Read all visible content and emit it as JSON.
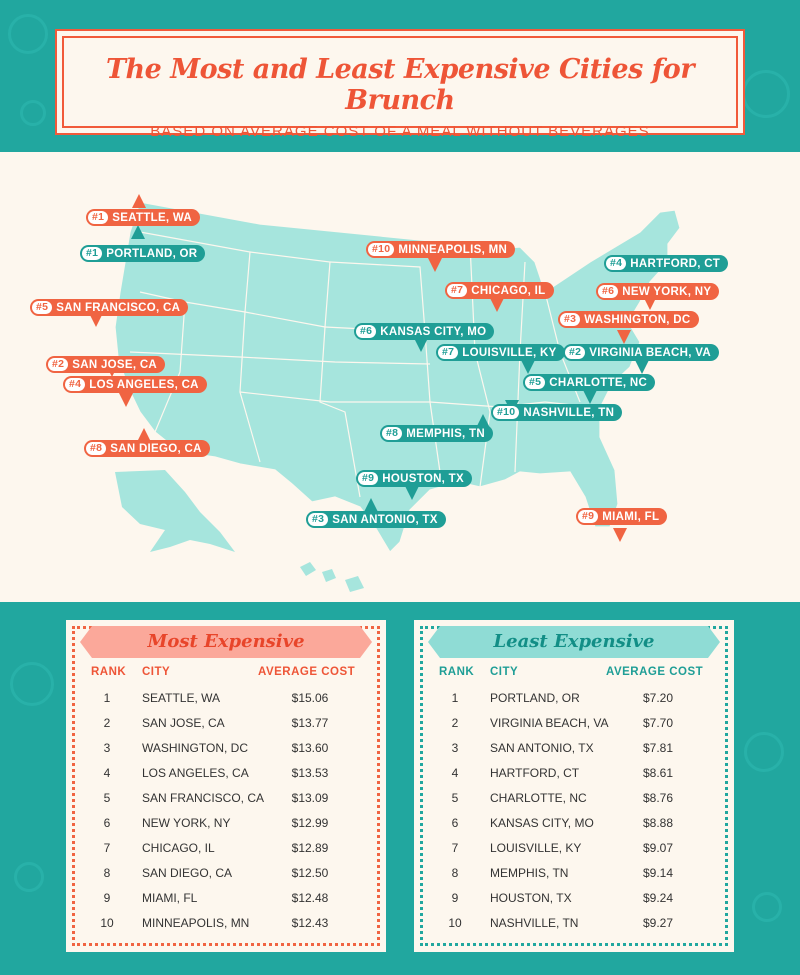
{
  "title": "The Most and Least Expensive Cities for Brunch",
  "subtitle": "BASED ON AVERAGE COST OF A MEAL WITHOUT BEVERAGES",
  "colors": {
    "most": "#f06442",
    "least": "#1f9e96",
    "map": "#a6e5dd",
    "background": "#fdf7ee"
  },
  "map_pins": [
    {
      "rank": "#1",
      "city": "SEATTLE, WA",
      "color": "red"
    },
    {
      "rank": "#1",
      "city": "PORTLAND, OR",
      "color": "teal"
    },
    {
      "rank": "#5",
      "city": "SAN FRANCISCO, CA",
      "color": "red"
    },
    {
      "rank": "#2",
      "city": "SAN JOSE, CA",
      "color": "red"
    },
    {
      "rank": "#4",
      "city": "LOS ANGELES, CA",
      "color": "red"
    },
    {
      "rank": "#8",
      "city": "SAN DIEGO, CA",
      "color": "red"
    },
    {
      "rank": "#10",
      "city": "MINNEAPOLIS, MN",
      "color": "red"
    },
    {
      "rank": "#7",
      "city": "CHICAGO, IL",
      "color": "red"
    },
    {
      "rank": "#6",
      "city": "KANSAS CITY, MO",
      "color": "teal"
    },
    {
      "rank": "#7",
      "city": "LOUISVILLE, KY",
      "color": "teal"
    },
    {
      "rank": "#8",
      "city": "MEMPHIS, TN",
      "color": "teal"
    },
    {
      "rank": "#9",
      "city": "HOUSTON, TX",
      "color": "teal"
    },
    {
      "rank": "#3",
      "city": "SAN ANTONIO, TX",
      "color": "teal"
    },
    {
      "rank": "#4",
      "city": "HARTFORD, CT",
      "color": "teal"
    },
    {
      "rank": "#6",
      "city": "NEW YORK, NY",
      "color": "red"
    },
    {
      "rank": "#3",
      "city": "WASHINGTON, DC",
      "color": "red"
    },
    {
      "rank": "#2",
      "city": "VIRGINIA BEACH, VA",
      "color": "teal"
    },
    {
      "rank": "#5",
      "city": "CHARLOTTE, NC",
      "color": "teal"
    },
    {
      "rank": "#10",
      "city": "NASHVILLE, TN",
      "color": "teal"
    },
    {
      "rank": "#9",
      "city": "MIAMI, FL",
      "color": "red"
    }
  ],
  "most": {
    "heading": "Most Expensive",
    "col_rank": "RANK",
    "col_city": "CITY",
    "col_cost": "AVERAGE COST",
    "rows": [
      {
        "rank": "1",
        "city": "SEATTLE, WA",
        "cost": "$15.06"
      },
      {
        "rank": "2",
        "city": "SAN JOSE, CA",
        "cost": "$13.77"
      },
      {
        "rank": "3",
        "city": "WASHINGTON, DC",
        "cost": "$13.60"
      },
      {
        "rank": "4",
        "city": "LOS ANGELES, CA",
        "cost": "$13.53"
      },
      {
        "rank": "5",
        "city": "SAN FRANCISCO, CA",
        "cost": "$13.09"
      },
      {
        "rank": "6",
        "city": "NEW YORK, NY",
        "cost": "$12.99"
      },
      {
        "rank": "7",
        "city": "CHICAGO, IL",
        "cost": "$12.89"
      },
      {
        "rank": "8",
        "city": "SAN DIEGO, CA",
        "cost": "$12.50"
      },
      {
        "rank": "9",
        "city": "MIAMI, FL",
        "cost": "$12.48"
      },
      {
        "rank": "10",
        "city": "MINNEAPOLIS, MN",
        "cost": "$12.43"
      }
    ]
  },
  "least": {
    "heading": "Least Expensive",
    "col_rank": "RANK",
    "col_city": "CITY",
    "col_cost": "AVERAGE COST",
    "rows": [
      {
        "rank": "1",
        "city": "PORTLAND, OR",
        "cost": "$7.20"
      },
      {
        "rank": "2",
        "city": "VIRGINIA BEACH, VA",
        "cost": "$7.70"
      },
      {
        "rank": "3",
        "city": "SAN ANTONIO, TX",
        "cost": "$7.81"
      },
      {
        "rank": "4",
        "city": "HARTFORD, CT",
        "cost": "$8.61"
      },
      {
        "rank": "5",
        "city": "CHARLOTTE, NC",
        "cost": "$8.76"
      },
      {
        "rank": "6",
        "city": "KANSAS CITY, MO",
        "cost": "$8.88"
      },
      {
        "rank": "7",
        "city": "LOUISVILLE, KY",
        "cost": "$9.07"
      },
      {
        "rank": "8",
        "city": "MEMPHIS, TN",
        "cost": "$9.14"
      },
      {
        "rank": "9",
        "city": "HOUSTON, TX",
        "cost": "$9.24"
      },
      {
        "rank": "10",
        "city": "NASHVILLE, TN",
        "cost": "$9.27"
      }
    ]
  }
}
